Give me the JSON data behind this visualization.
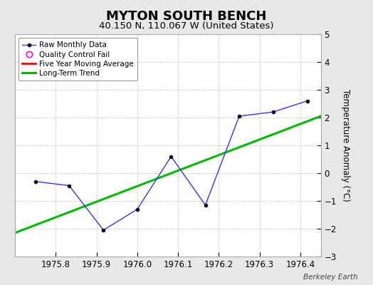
{
  "title": "MYTON SOUTH BENCH",
  "subtitle": "40.150 N, 110.067 W (United States)",
  "credit": "Berkeley Earth",
  "raw_x": [
    1975.75,
    1975.833,
    1975.917,
    1976.0,
    1976.083,
    1976.167,
    1976.25,
    1976.333,
    1976.417
  ],
  "raw_y": [
    -0.3,
    -0.45,
    -2.05,
    -1.3,
    0.6,
    -1.15,
    2.05,
    2.2,
    2.6
  ],
  "trend_x": [
    1975.7,
    1976.45
  ],
  "trend_y": [
    -2.15,
    2.05
  ],
  "ylabel": "Temperature Anomaly (°C)",
  "ylim": [
    -3,
    5
  ],
  "xlim": [
    1975.7,
    1976.45
  ],
  "yticks": [
    -3,
    -2,
    -1,
    0,
    1,
    2,
    3,
    4,
    5
  ],
  "xticks": [
    1975.8,
    1975.9,
    1976.0,
    1976.1,
    1976.2,
    1976.3,
    1976.4
  ],
  "raw_line_color": "#3333ff",
  "raw_marker_color": "#000000",
  "trend_color": "#00bb00",
  "moving_avg_color": "#ff0000",
  "qc_fail_color": "#ff00ff",
  "outer_bg_color": "#e8e8e8",
  "plot_bg_color": "#ffffff",
  "grid_color": "#cccccc",
  "legend_labels": [
    "Raw Monthly Data",
    "Quality Control Fail",
    "Five Year Moving Average",
    "Long-Term Trend"
  ],
  "title_fontsize": 13,
  "subtitle_fontsize": 9.5,
  "ylabel_fontsize": 8.5,
  "tick_fontsize": 8.5,
  "credit_fontsize": 7.5
}
